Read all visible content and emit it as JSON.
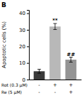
{
  "chart_data": {
    "type": "bar",
    "title": "B",
    "categories": [
      null,
      null,
      null
    ],
    "values": [
      5.0,
      32.0,
      12.0
    ],
    "errors": [
      1.2,
      1.8,
      1.5
    ],
    "colors": [
      "#3a3a3a",
      "#b8b8b8",
      "#949494"
    ],
    "ylabel": "Apoptotic cells (%)",
    "ylim": [
      0,
      42
    ],
    "yticks": [
      0,
      10,
      20,
      30,
      40
    ],
    "annotations": [
      null,
      "**",
      "##"
    ],
    "rows": [
      {
        "label": "Rot (0.3 μM)",
        "signs": [
          "-",
          "+",
          "+"
        ]
      },
      {
        "label": "Re (5 μM)",
        "signs": [
          "-",
          "-",
          "+"
        ]
      }
    ],
    "grid": false,
    "tick_labels": "y"
  }
}
